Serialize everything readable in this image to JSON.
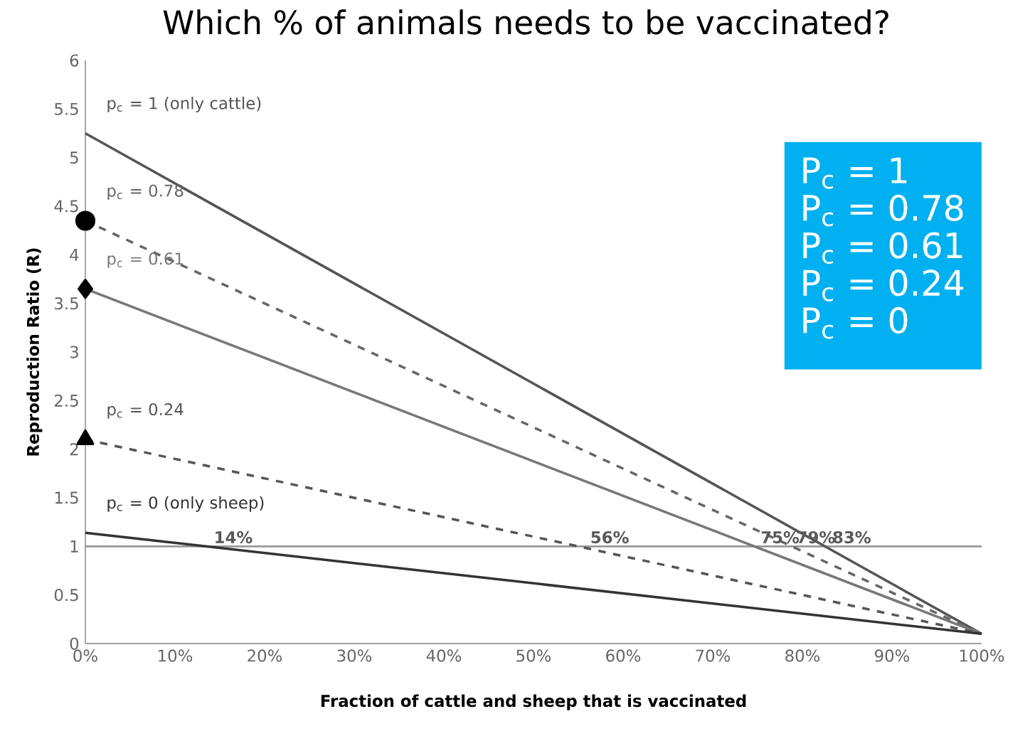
{
  "chart_data": {
    "type": "line",
    "title": "Which % of animals needs to be vaccinated?",
    "xlabel": "Fraction of cattle and sheep that is vaccinated",
    "ylabel": "Reproduction Ratio (R)",
    "x": [
      0,
      1
    ],
    "series": [
      {
        "name": "p$_{c}$ = 1 (only cattle)",
        "color": "#555555",
        "values": [
          5.25,
          0.1
        ],
        "line_style": "solid",
        "marker": "none"
      },
      {
        "name": "p$_{c}$ = 0.78",
        "color": "#666666",
        "values": [
          4.35,
          0.1
        ],
        "line_style": "dashed",
        "marker": "circle"
      },
      {
        "name": "p$_{c}$ = 0.61",
        "color": "#777777",
        "values": [
          3.65,
          0.1
        ],
        "line_style": "solid",
        "marker": "diamond"
      },
      {
        "name": "p$_{c}$ = 0.24",
        "color": "#555555",
        "values": [
          2.1,
          0.1
        ],
        "line_style": "dashed",
        "marker": "triangle"
      },
      {
        "name": "p$_{c}$ = 0 (only sheep)",
        "color": "#333333",
        "values": [
          1.14,
          0.1
        ],
        "line_style": "solid",
        "marker": "none"
      }
    ],
    "xlim": [
      0,
      1
    ],
    "ylim": [
      0,
      6
    ],
    "xticks": [
      {
        "value": 0,
        "label": "0%"
      },
      {
        "value": 0.1,
        "label": "10%"
      },
      {
        "value": 0.2,
        "label": "20%"
      },
      {
        "value": 0.3,
        "label": "30%"
      },
      {
        "value": 0.4,
        "label": "40%"
      },
      {
        "value": 0.5,
        "label": "50%"
      },
      {
        "value": 0.6,
        "label": "60%"
      },
      {
        "value": 0.7,
        "label": "70%"
      },
      {
        "value": 0.8,
        "label": "80%"
      },
      {
        "value": 0.9,
        "label": "90%"
      },
      {
        "value": 1,
        "label": "100%"
      }
    ],
    "yticks": [
      0,
      0.5,
      1,
      1.5,
      2,
      2.5,
      3,
      3.5,
      4,
      4.5,
      5,
      5.5,
      6
    ],
    "ref_lines": [
      {
        "axis": "y",
        "value": 1,
        "color": "#999999"
      }
    ],
    "annotations": [
      {
        "text": "14%",
        "x": 0.14,
        "y": 1
      },
      {
        "text": "56%",
        "x": 0.56,
        "y": 1
      },
      {
        "text": "75%",
        "x": 0.75,
        "y": 1
      },
      {
        "text": "79%",
        "x": 0.79,
        "y": 1
      },
      {
        "text": "83%",
        "x": 0.83,
        "y": 1
      },
      "P$_{c}$ = 1",
      "P$_{c}$ = 0.78",
      "P$_{c}$ = 0.61",
      "P$_{c}$ = 0.24",
      "P$_{c}$ = 0"
    ],
    "legend": "left",
    "grid": false
  }
}
